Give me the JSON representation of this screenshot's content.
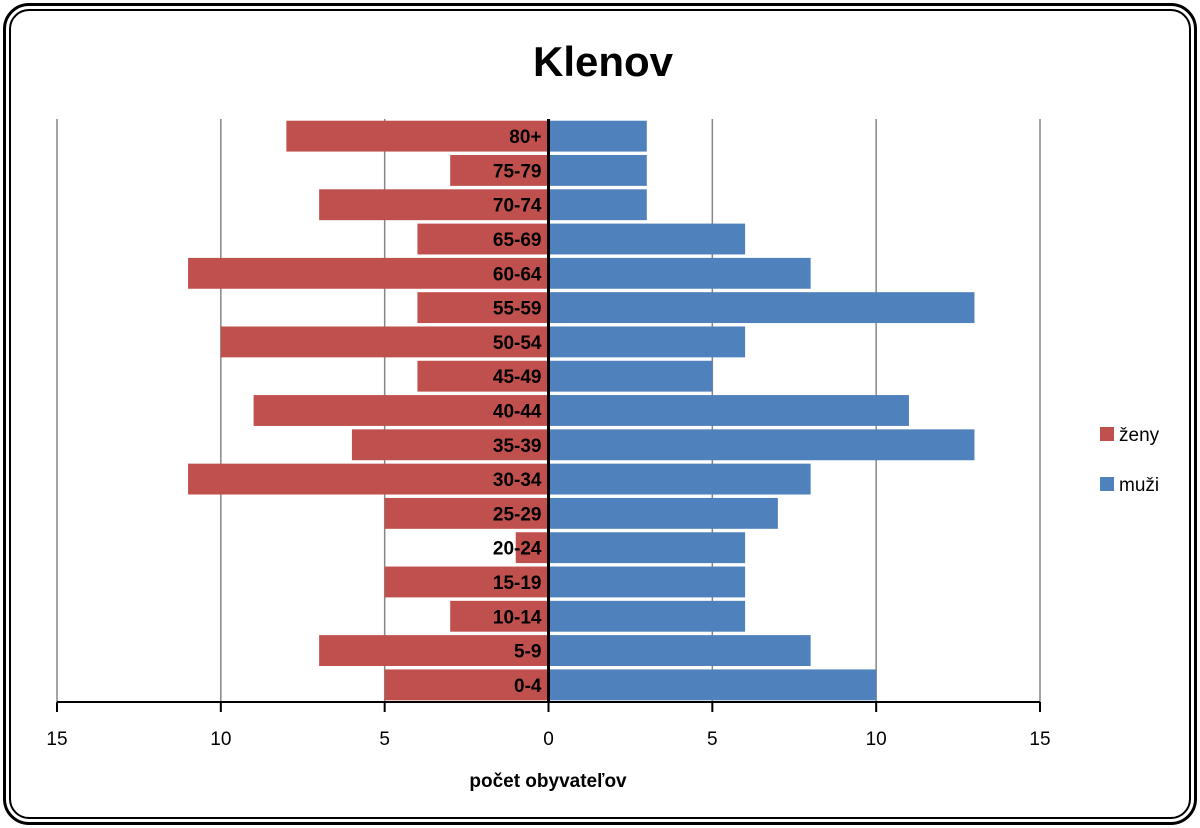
{
  "chart_data": {
    "type": "bar",
    "orientation": "horizontal",
    "title": "Klenov",
    "xlabel": "počet obyvateľov",
    "categories": [
      "0-4",
      "5-9",
      "10-14",
      "15-19",
      "20-24",
      "25-29",
      "30-34",
      "35-39",
      "40-44",
      "45-49",
      "50-54",
      "55-59",
      "60-64",
      "65-69",
      "70-74",
      "75-79",
      "80+"
    ],
    "series": [
      {
        "name": "ženy",
        "color": "#C0504D",
        "values": [
          5,
          7,
          3,
          5,
          1,
          5,
          11,
          6,
          9,
          4,
          10,
          4,
          11,
          4,
          7,
          3,
          8
        ],
        "direction": "left"
      },
      {
        "name": "muži",
        "color": "#4F81BD",
        "values": [
          10,
          8,
          6,
          6,
          6,
          7,
          8,
          13,
          11,
          5,
          6,
          13,
          8,
          6,
          3,
          3,
          3
        ],
        "direction": "right"
      }
    ],
    "xlim": [
      -15,
      15
    ],
    "xticks": [
      -15,
      -10,
      -5,
      0,
      5,
      10,
      15
    ],
    "xtick_labels": [
      "15",
      "10",
      "5",
      "0",
      "5",
      "10",
      "15"
    ],
    "grid": true,
    "legend_position": "right"
  }
}
